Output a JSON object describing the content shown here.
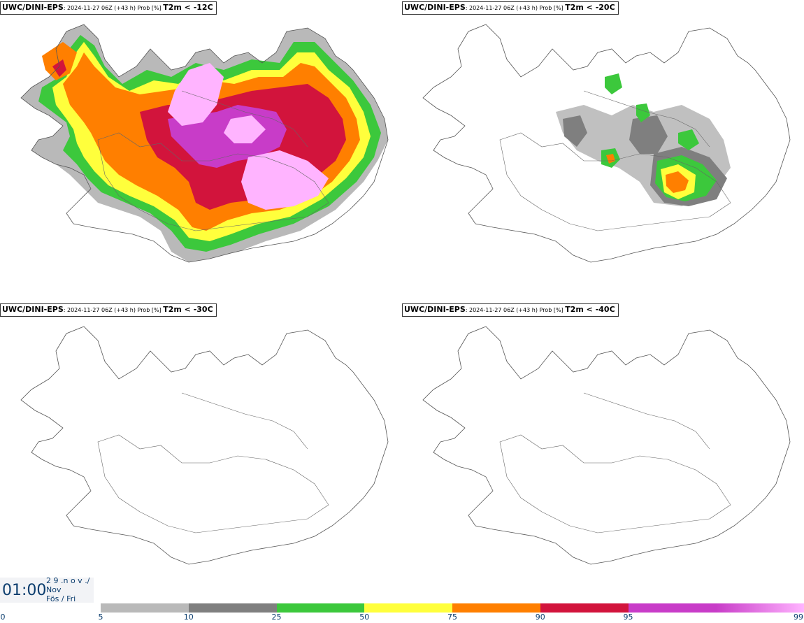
{
  "panels": [
    {
      "model": "UWC/DINI-EPS",
      "meta": ": 2024-11-27 06Z (+43 h) Prob [%] ",
      "variable": "T2m < -12C"
    },
    {
      "model": "UWC/DINI-EPS",
      "meta": ": 2024-11-27 06Z (+43 h) Prob [%] ",
      "variable": "T2m < -20C"
    },
    {
      "model": "UWC/DINI-EPS",
      "meta": ": 2024-11-27 06Z (+43 h) Prob [%] ",
      "variable": "T2m < -30C"
    },
    {
      "model": "UWC/DINI-EPS",
      "meta": ": 2024-11-27 06Z (+43 h) Prob [%] ",
      "variable": "T2m < -40C"
    }
  ],
  "valid_time": {
    "clock": "01:00",
    "line1": "2 9 .n o v ./",
    "line2": "Nov",
    "line3": "Fös / Fri"
  },
  "legend": {
    "ticks": [
      "0",
      "5",
      "10",
      "25",
      "50",
      "75",
      "90",
      "95",
      "99"
    ],
    "colors": [
      "#b9b9b9",
      "#7f7f7f",
      "#3cc83c",
      "#ffff3c",
      "#ff7f00",
      "#d2143c",
      "#c83cc8",
      "#ffb4ff"
    ]
  }
}
